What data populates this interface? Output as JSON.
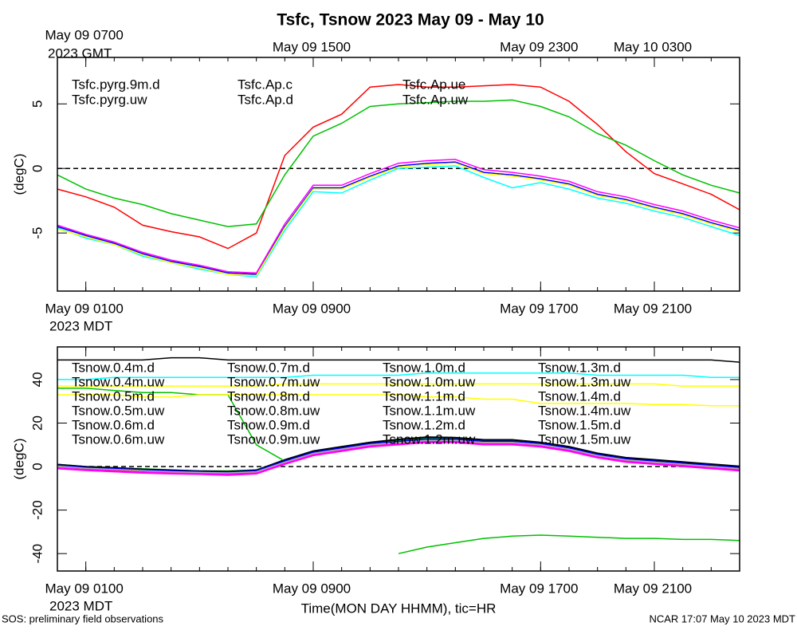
{
  "title": "Tsfc, Tsnow 2023 May 09 - May 10",
  "footer": {
    "left": "SOS: preliminary field observations",
    "right": "NCAR 17:07 May 10 2023 MDT"
  },
  "chart_data": [
    {
      "type": "line",
      "ylabel": "(degC)",
      "x": [
        0,
        1,
        2,
        3,
        4,
        5,
        6,
        7,
        8,
        9,
        10,
        11,
        12,
        13,
        14,
        15,
        16,
        17,
        18,
        19,
        20,
        21,
        22,
        23,
        24
      ],
      "xlim": [
        0,
        24
      ],
      "ylim": [
        -9.5,
        8.6
      ],
      "yticks": [
        -5,
        0,
        5
      ],
      "reference_line": 0,
      "xticks_minor": [
        0,
        1,
        2,
        3,
        4,
        5,
        6,
        7,
        8,
        9,
        10,
        11,
        12,
        13,
        14,
        15,
        16,
        17,
        18,
        19,
        20,
        21,
        22,
        23,
        24
      ],
      "xticks": [
        {
          "value": 1,
          "label": "May 09 0100"
        },
        {
          "value": 9,
          "label": "May 09 0900"
        },
        {
          "value": 17,
          "label": "May 09 1700"
        },
        {
          "value": 21,
          "label": "May 09 2100"
        }
      ],
      "x_year_label": "2023 MDT",
      "xticks_top": [
        {
          "value": 1,
          "label": "May 09 0700"
        },
        {
          "value": 9,
          "label": "May 09 1500"
        },
        {
          "value": 17,
          "label": "May 09 2300"
        },
        {
          "value": 21,
          "label": "May 10 0300"
        }
      ],
      "x_top_year_label": "2023 GMT",
      "series": [
        {
          "name": "Tsfc.pyrg.9m.d",
          "color": "#ff0000",
          "values": [
            -1.6,
            -2.2,
            -3.0,
            -4.4,
            -4.9,
            -5.3,
            -6.2,
            -5.0,
            1.0,
            3.2,
            4.2,
            6.3,
            6.5,
            6.3,
            6.3,
            6.4,
            6.5,
            6.3,
            5.2,
            3.4,
            1.3,
            -0.4,
            -1.2,
            -2.0,
            -3.2
          ]
        },
        {
          "name": "Tsfc.pyrg.uw",
          "color": "#00c000",
          "values": [
            -0.5,
            -1.6,
            -2.3,
            -2.8,
            -3.5,
            -4.0,
            -4.5,
            -4.3,
            -0.5,
            2.5,
            3.5,
            4.8,
            5.0,
            5.1,
            5.2,
            5.2,
            5.3,
            4.8,
            4.0,
            2.7,
            1.8,
            0.6,
            -0.5,
            -1.3,
            -1.9
          ]
        },
        {
          "name": "Tsfc.Ap.c",
          "color": "#0000ff",
          "values": [
            -4.5,
            -5.2,
            -5.8,
            -6.6,
            -7.2,
            -7.6,
            -8.1,
            -8.2,
            -4.5,
            -1.5,
            -1.5,
            -0.6,
            0.2,
            0.4,
            0.5,
            -0.3,
            -0.5,
            -0.8,
            -1.2,
            -2.0,
            -2.4,
            -3.0,
            -3.5,
            -4.2,
            -4.8
          ]
        },
        {
          "name": "Tsfc.Ap.d",
          "color": "#00ffff",
          "values": [
            -4.6,
            -5.4,
            -5.9,
            -6.8,
            -7.3,
            -7.8,
            -8.2,
            -8.4,
            -4.8,
            -1.8,
            -1.9,
            -0.9,
            0.0,
            0.1,
            0.2,
            -0.7,
            -1.5,
            -1.1,
            -1.6,
            -2.3,
            -2.7,
            -3.3,
            -3.8,
            -4.5,
            -5.2
          ]
        },
        {
          "name": "Tsfc.Ap.ue",
          "color": "#ff00ff",
          "values": [
            -4.4,
            -5.1,
            -5.7,
            -6.5,
            -7.1,
            -7.5,
            -8.0,
            -8.1,
            -4.3,
            -1.3,
            -1.3,
            -0.4,
            0.4,
            0.6,
            0.7,
            -0.1,
            -0.3,
            -0.6,
            -1.0,
            -1.8,
            -2.2,
            -2.8,
            -3.3,
            -4.0,
            -4.6
          ]
        },
        {
          "name": "Tsfc.Ap.uw",
          "color": "#ffff00",
          "values": [
            -4.7,
            -5.3,
            -5.9,
            -6.7,
            -7.3,
            -7.7,
            -8.2,
            -8.3,
            -4.6,
            -1.6,
            -1.6,
            -0.7,
            0.1,
            0.3,
            0.4,
            -0.4,
            -0.6,
            -0.9,
            -1.3,
            -2.1,
            -2.5,
            -3.1,
            -3.6,
            -4.3,
            -4.9
          ]
        }
      ]
    },
    {
      "type": "line",
      "ylabel": "(degC)",
      "xlabel": "Time(MON DAY HHMM), tic=HR",
      "x": [
        0,
        1,
        2,
        3,
        4,
        5,
        6,
        7,
        8,
        9,
        10,
        11,
        12,
        13,
        14,
        15,
        16,
        17,
        18,
        19,
        20,
        21,
        22,
        23,
        24
      ],
      "xlim": [
        0,
        24
      ],
      "ylim": [
        -48,
        55
      ],
      "yticks": [
        -40,
        -20,
        0,
        20,
        40
      ],
      "reference_line": 0,
      "xticks_minor": [
        0,
        1,
        2,
        3,
        4,
        5,
        6,
        7,
        8,
        9,
        10,
        11,
        12,
        13,
        14,
        15,
        16,
        17,
        18,
        19,
        20,
        21,
        22,
        23,
        24
      ],
      "xticks": [
        {
          "value": 1,
          "label": "May 09 0100"
        },
        {
          "value": 9,
          "label": "May 09 0900"
        },
        {
          "value": 17,
          "label": "May 09 1700"
        },
        {
          "value": 21,
          "label": "May 09 2100"
        }
      ],
      "x_year_label": "2023 MDT",
      "series": [
        {
          "name": "Tsnow.0.4m.d",
          "color": "#ff0000",
          "values": [
            0,
            -1,
            -1.8,
            -2.2,
            -2.8,
            -3,
            -3.4,
            -2.8,
            1.5,
            5.6,
            7.6,
            9.6,
            10.6,
            11.6,
            11.8,
            10.8,
            10.8,
            9.8,
            7.6,
            4.6,
            2.6,
            1.6,
            0.6,
            -0.4,
            -1.4
          ]
        },
        {
          "name": "Tsnow.0.4m.uw",
          "color": "#00c000",
          "values": [
            1,
            0,
            -0.5,
            -1,
            -1.5,
            -2,
            -2,
            -1.5,
            3,
            7,
            9,
            11,
            12,
            13,
            13,
            12,
            12,
            11,
            9,
            6,
            4,
            3,
            2,
            1,
            0
          ]
        },
        {
          "name": "Tsnow.0.5m.d",
          "color": "#0000ff",
          "values": [
            0.5,
            -0.5,
            -1,
            -1.6,
            -2,
            -2.4,
            -2.6,
            -2,
            2.5,
            6.5,
            8.5,
            10.5,
            11.5,
            12.5,
            12.5,
            11.5,
            11.5,
            10.5,
            8.5,
            5.5,
            3.5,
            2.5,
            1.5,
            0.5,
            -0.5
          ]
        },
        {
          "name": "Tsnow.0.5m.uw",
          "color": "#00ffff",
          "values": [
            -0.5,
            -1.5,
            -2,
            -2.5,
            -3,
            -3.2,
            -3.5,
            -3,
            1.5,
            5.5,
            7.5,
            9.5,
            10.5,
            11.5,
            11.5,
            10.5,
            10.5,
            9.5,
            7.5,
            4.5,
            2.5,
            1.5,
            0.5,
            -0.5,
            -1.5
          ]
        },
        {
          "name": "Tsnow.0.6m.d",
          "color": "#ff00ff",
          "values": [
            -1,
            -1.8,
            -2.4,
            -3,
            -3.4,
            -3.6,
            -4,
            -3.4,
            1,
            5,
            7,
            9,
            10,
            11,
            11,
            10,
            10,
            9,
            7,
            4,
            2,
            1,
            0,
            -1,
            -2
          ]
        },
        {
          "name": "Tsnow.0.6m.uw",
          "color": "#ffff00",
          "values": [
            0,
            -1,
            -1.5,
            -2,
            -2.5,
            -2.8,
            -3,
            -2,
            3,
            6.5,
            8,
            10,
            11,
            12,
            12,
            11,
            11,
            10,
            8,
            5,
            3,
            2,
            1,
            0,
            -1
          ]
        },
        {
          "name": "Tsnow.0.7m.d",
          "color": "#b0b0b0",
          "values": [
            0.5,
            -0.5,
            -1.2,
            -1.8,
            -2.2,
            -2.6,
            -2.8,
            -2.2,
            2.2,
            6.2,
            8.2,
            10.2,
            11.2,
            12.2,
            12.2,
            11.2,
            11.2,
            10.2,
            8.2,
            5.2,
            3.2,
            2.2,
            1.2,
            0.2,
            -0.8
          ]
        },
        {
          "name": "Tsnow.0.7m.uw",
          "color": "#000000",
          "values": [
            1,
            0,
            -0.5,
            -1.2,
            -1.6,
            -2,
            -2.2,
            -1.6,
            3.2,
            7.2,
            9.2,
            11.2,
            12.6,
            13.6,
            13.4,
            12.4,
            12.4,
            11.2,
            9.2,
            6.2,
            4.2,
            3.2,
            2.2,
            1.2,
            0.2
          ]
        },
        {
          "name": "Tsnow.0.8m.d",
          "color": "#ff0000",
          "values": [
            0.2,
            -0.8,
            -1.4,
            -2,
            -2.6,
            -2.9,
            -3.2,
            -2.6,
            1.8,
            5.8,
            7.8,
            9.8,
            10.8,
            11.8,
            11.9,
            10.9,
            10.9,
            9.9,
            7.8,
            4.8,
            2.8,
            1.8,
            0.8,
            -0.2,
            -1.2
          ]
        },
        {
          "name": "Tsnow.0.8m.uw",
          "color": "#00c000",
          "values": [
            36,
            36,
            35,
            34,
            34,
            33,
            33,
            10,
            2.5,
            6.5,
            8.5,
            10.5,
            11.5,
            12.5,
            12.5,
            11.5,
            11.5,
            10.5,
            8.5,
            5.5,
            3.5,
            2.5,
            1.5,
            0.5,
            -0.5
          ]
        },
        {
          "name": "Tsnow.0.9m.d",
          "color": "#0000ff",
          "values": [
            0.3,
            -0.7,
            -1.3,
            -1.9,
            -2.3,
            -2.7,
            -2.9,
            -2.3,
            2.3,
            6.3,
            8.3,
            10.3,
            11.3,
            12.3,
            12.3,
            11.3,
            11.3,
            10.3,
            8.3,
            5.3,
            3.3,
            2.3,
            1.3,
            0.3,
            -0.7
          ]
        },
        {
          "name": "Tsnow.0.9m.uw",
          "color": "#00ffff",
          "values": [
            -0.3,
            -1.3,
            -1.8,
            -2.3,
            -2.8,
            -3.1,
            -3.3,
            -2.8,
            1.7,
            5.7,
            7.7,
            9.7,
            10.7,
            11.7,
            11.7,
            10.7,
            10.7,
            9.7,
            7.7,
            4.7,
            2.7,
            1.7,
            0.7,
            -0.3,
            -1.3
          ]
        },
        {
          "name": "Tsnow.1.0m.d",
          "color": "#ff00ff",
          "values": [
            -0.8,
            -1.6,
            -2.2,
            -2.8,
            -3.2,
            -3.4,
            -3.8,
            -3.2,
            1.2,
            5.2,
            7.2,
            9.2,
            10.2,
            11.2,
            11.2,
            10.2,
            10.2,
            9.2,
            7.2,
            4.2,
            2.2,
            1.2,
            0.2,
            -0.8,
            -1.8
          ]
        },
        {
          "name": "Tsnow.1.0m.uw",
          "color": "#ffff00",
          "values": [
            33,
            33,
            33,
            32,
            32,
            33,
            33,
            33,
            33,
            33,
            33,
            33,
            33,
            32,
            32,
            31,
            31,
            29,
            29,
            29,
            29,
            28.5,
            28.5,
            28,
            28
          ]
        },
        {
          "name": "Tsnow.1.1m.d",
          "color": "#b0b0b0",
          "values": [
            0.4,
            -0.6,
            -1.1,
            -1.7,
            -2.1,
            -2.5,
            -2.7,
            -2.1,
            2.4,
            6.4,
            8.4,
            10.4,
            11.4,
            12.4,
            12.4,
            11.4,
            11.4,
            10.4,
            8.4,
            5.4,
            3.4,
            2.4,
            1.4,
            0.4,
            -0.6
          ]
        },
        {
          "name": "Tsnow.1.1m.uw",
          "color": "#000000",
          "values": [
            0.8,
            -0.2,
            -0.7,
            -1.4,
            -1.8,
            -2.2,
            -2.4,
            -1.8,
            3,
            7,
            9,
            11,
            12.4,
            13.4,
            13.2,
            12.2,
            12.2,
            11,
            9,
            6,
            4,
            3,
            2,
            1,
            0
          ]
        },
        {
          "name": "Tsnow.1.2m.d",
          "color": "#ff0000",
          "values": [
            0.1,
            -0.9,
            -1.6,
            -2.1,
            -2.7,
            -3,
            -3.3,
            -2.7,
            1.6,
            5.7,
            7.7,
            9.7,
            10.7,
            11.7,
            11.8,
            10.8,
            10.8,
            9.8,
            7.7,
            4.7,
            2.7,
            1.7,
            0.7,
            -0.3,
            -1.3
          ]
        },
        {
          "name": "Tsnow.1.2m.uw",
          "color": "#00c000",
          "values": [
            null,
            null,
            null,
            null,
            null,
            null,
            null,
            null,
            null,
            null,
            null,
            null,
            -40,
            -37,
            -35,
            -33,
            -32,
            -31.5,
            -32,
            -32.5,
            -33,
            -33,
            -33.5,
            -33.5,
            -34
          ]
        },
        {
          "name": "Tsnow.1.3m.d",
          "color": "#0000ff",
          "values": [
            0.6,
            -0.4,
            -0.9,
            -1.5,
            -1.9,
            -2.3,
            -2.5,
            -1.9,
            2.6,
            6.6,
            8.6,
            10.6,
            11.6,
            12.6,
            12.6,
            11.6,
            11.6,
            10.6,
            8.6,
            5.6,
            3.6,
            2.6,
            1.6,
            0.6,
            -0.4
          ]
        },
        {
          "name": "Tsnow.1.3m.uw",
          "color": "#00ffff",
          "values": [
            40,
            40,
            41,
            41,
            41,
            41,
            41,
            41,
            41,
            42,
            42,
            42,
            42,
            43,
            43,
            43,
            43,
            43,
            43,
            42,
            42,
            42,
            42,
            41,
            41
          ]
        },
        {
          "name": "Tsnow.1.4m.d",
          "color": "#ff00ff",
          "values": [
            -0.6,
            -1.4,
            -2,
            -2.6,
            -3,
            -3.2,
            -3.6,
            -3,
            1.4,
            5.4,
            7.4,
            9.4,
            10.4,
            11.4,
            11.4,
            10.4,
            10.4,
            9.4,
            7.4,
            4.4,
            2.4,
            1.4,
            0.4,
            -0.6,
            -1.6
          ]
        },
        {
          "name": "Tsnow.1.4m.uw",
          "color": "#ffff00",
          "values": [
            37,
            37,
            37,
            37,
            37,
            37,
            37,
            37,
            38,
            38,
            38,
            38,
            38,
            38,
            38,
            38,
            38,
            38,
            38,
            38,
            38,
            38,
            37,
            37,
            37
          ]
        },
        {
          "name": "Tsnow.1.5m.d",
          "color": "#b0b0b0",
          "values": [
            0.2,
            -0.8,
            -1.3,
            -1.9,
            -2.4,
            -2.7,
            -2.9,
            -2.4,
            2,
            6,
            8,
            10,
            11,
            12,
            12,
            11,
            11,
            10,
            8,
            5,
            3,
            2,
            1,
            0,
            -1
          ]
        },
        {
          "name": "Tsnow.1.5m.uw",
          "color": "#000000",
          "values": [
            49,
            49,
            49,
            49,
            50,
            50,
            49,
            49,
            49,
            49,
            49,
            49,
            49,
            49,
            49,
            49,
            49,
            49,
            49,
            49,
            49,
            49,
            49,
            49,
            48
          ]
        }
      ]
    }
  ]
}
